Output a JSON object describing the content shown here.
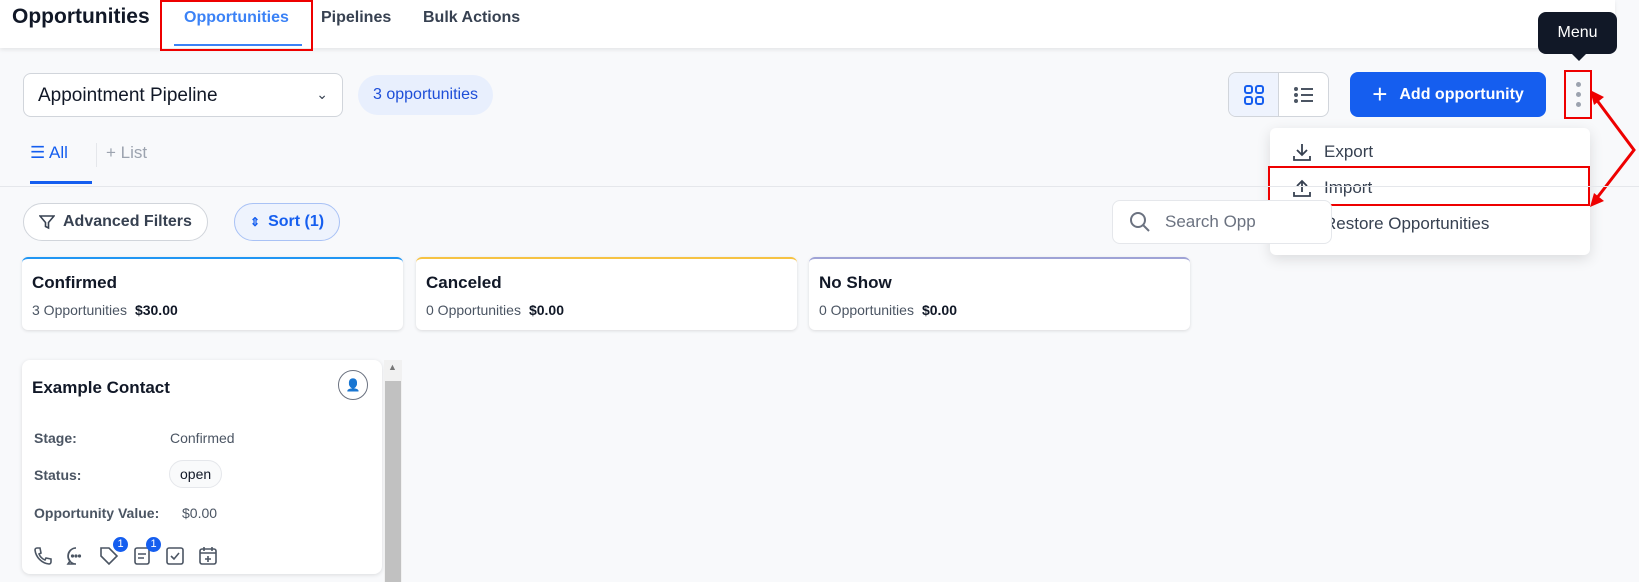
{
  "header": {
    "title": "Opportunities",
    "tabs": [
      {
        "label": "Opportunities",
        "active": true
      },
      {
        "label": "Pipelines"
      },
      {
        "label": "Bulk Actions"
      }
    ]
  },
  "toolbar": {
    "pipeline": "Appointment Pipeline",
    "count_badge": "3 opportunities",
    "add_label": "Add opportunity",
    "tooltip": "Menu"
  },
  "menu": {
    "items": [
      "Export",
      "Import",
      "Restore Opportunities"
    ]
  },
  "views": {
    "all": "All",
    "add_list": "List"
  },
  "filters": {
    "advanced": "Advanced Filters",
    "sort": "Sort (1)",
    "search_placeholder": "Search Opportunities"
  },
  "stages": [
    {
      "name": "Confirmed",
      "count": "3 Opportunities",
      "value": "$30.00",
      "color": "#2196f3"
    },
    {
      "name": "Canceled",
      "count": "0 Opportunities",
      "value": "$0.00",
      "color": "#f6c343"
    },
    {
      "name": "No Show",
      "count": "0 Opportunities",
      "value": "$0.00",
      "color": "#9fa3d6"
    }
  ],
  "card": {
    "name": "Example Contact",
    "stage_label": "Stage:",
    "stage": "Confirmed",
    "status_label": "Status:",
    "status": "open",
    "value_label": "Opportunity Value:",
    "value": "$0.00",
    "tag_count": "1",
    "note_count": "1"
  },
  "colors": {
    "primary": "#155eef",
    "annotation": "#ee0000"
  }
}
